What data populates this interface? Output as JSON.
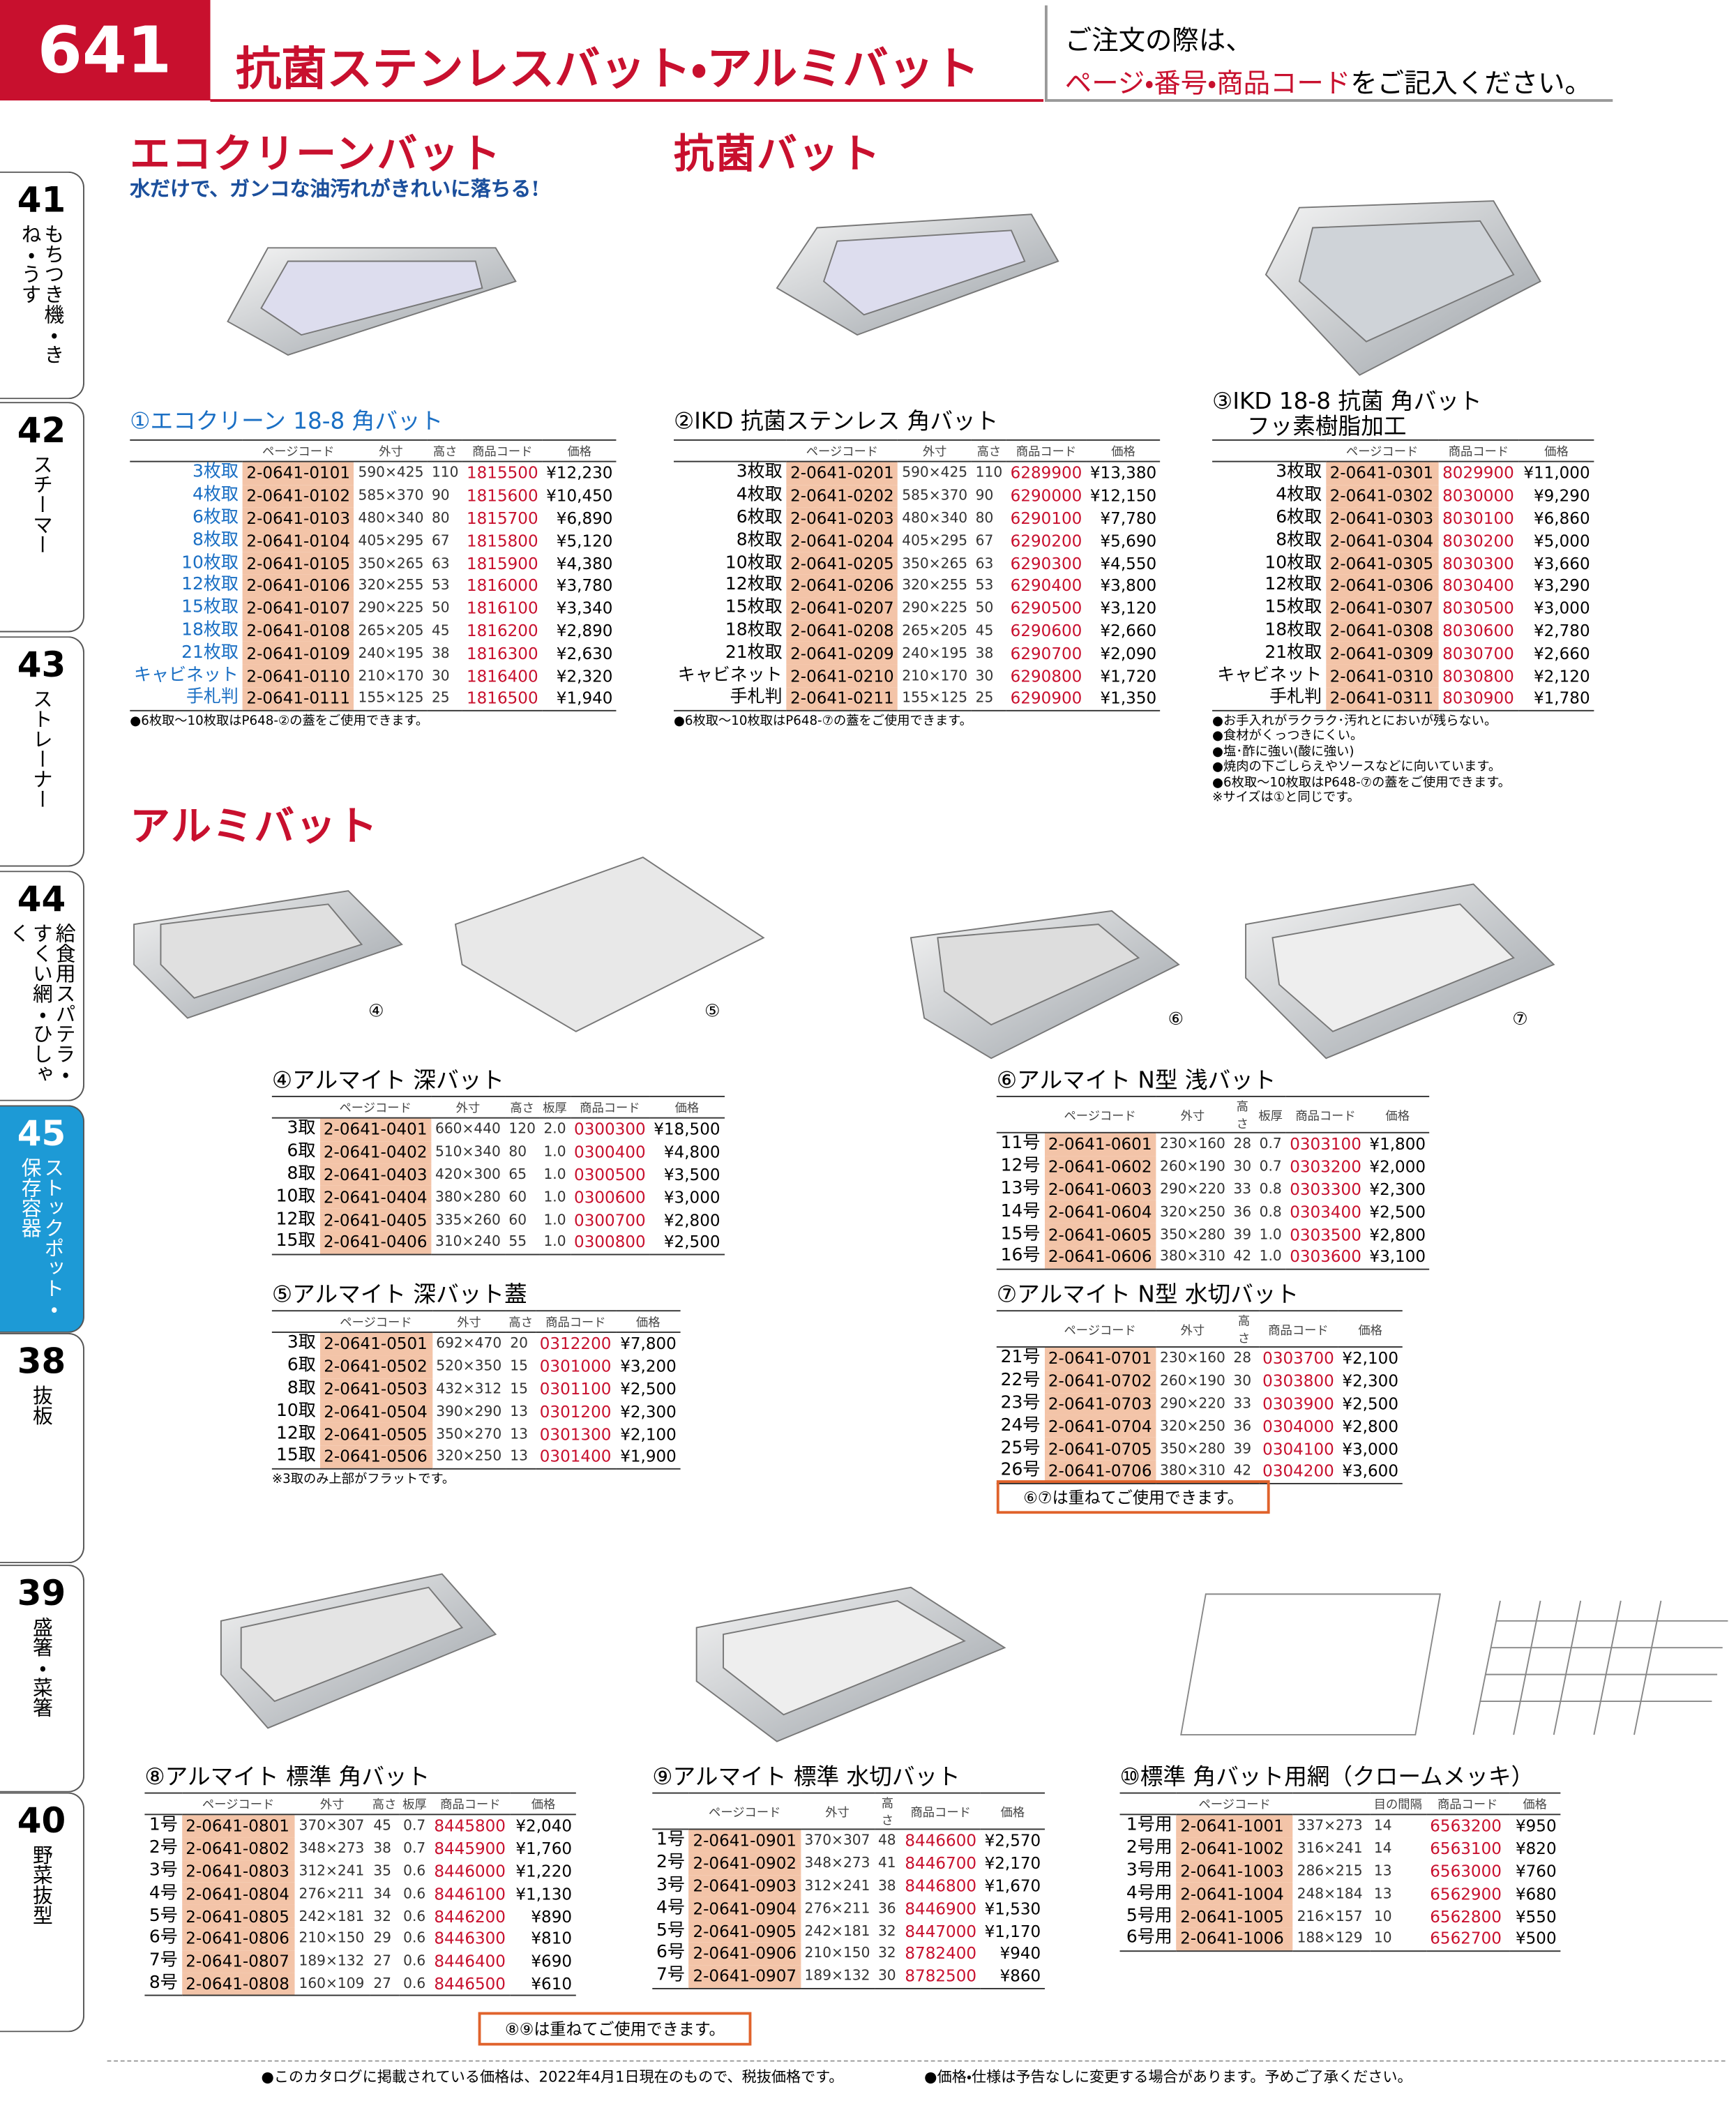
{
  "header": {
    "page": "641",
    "title": "抗菌ステンレスバット・アルミバット",
    "note_1": "ご注文の際は、",
    "note_red": "ページ・番号・商品コード",
    "note_2": "をご記入ください。"
  },
  "tabs": [
    {
      "num": "41",
      "label": "もちつき機・きね・うす"
    },
    {
      "num": "42",
      "label": "スチーマー"
    },
    {
      "num": "43",
      "label": "ストレーナー"
    },
    {
      "num": "44",
      "label": "給食用スパテラ・すくい網・ひしゃく"
    },
    {
      "num": "45",
      "label": "ストックポット・保存容器"
    },
    {
      "num": "38",
      "label": "抜板"
    },
    {
      "num": "39",
      "label": "盛箸・菜箸"
    },
    {
      "num": "40",
      "label": "野菜抜型"
    }
  ],
  "sections": {
    "eco": "エコクリーンバット",
    "eco_sub": "水だけで、ガンコな油汚れがきれいに落ちる!",
    "kokin": "抗菌バット",
    "alumi": "アルミバット"
  },
  "photo_labels": [
    "④",
    "⑤",
    "⑥",
    "⑦"
  ],
  "products": [
    {
      "title": "①エコクリーン 18-8 角バット",
      "columns": [
        "ページコード",
        "外寸",
        "高さ",
        "商品コード",
        "価格"
      ],
      "rows": [
        [
          "3枚取",
          "2-0641-0101",
          "590×425",
          "110",
          "1815500",
          "¥12,230"
        ],
        [
          "4枚取",
          "2-0641-0102",
          "585×370",
          "90",
          "1815600",
          "¥10,450"
        ],
        [
          "6枚取",
          "2-0641-0103",
          "480×340",
          "80",
          "1815700",
          "¥6,890"
        ],
        [
          "8枚取",
          "2-0641-0104",
          "405×295",
          "67",
          "1815800",
          "¥5,120"
        ],
        [
          "10枚取",
          "2-0641-0105",
          "350×265",
          "63",
          "1815900",
          "¥4,380"
        ],
        [
          "12枚取",
          "2-0641-0106",
          "320×255",
          "53",
          "1816000",
          "¥3,780"
        ],
        [
          "15枚取",
          "2-0641-0107",
          "290×225",
          "50",
          "1816100",
          "¥3,340"
        ],
        [
          "18枚取",
          "2-0641-0108",
          "265×205",
          "45",
          "1816200",
          "¥2,890"
        ],
        [
          "21枚取",
          "2-0641-0109",
          "240×195",
          "38",
          "1816300",
          "¥2,630"
        ],
        [
          "キャビネット",
          "2-0641-0110",
          "210×170",
          "30",
          "1816400",
          "¥2,320"
        ],
        [
          "手札判",
          "2-0641-0111",
          "155×125",
          "25",
          "1816500",
          "¥1,940"
        ]
      ],
      "notes": [
        "●6枚取～10枚取はP648-②の蓋をご使用できます。"
      ]
    },
    {
      "title": "②IKD 抗菌ステンレス 角バット",
      "columns": [
        "ページコード",
        "外寸",
        "高さ",
        "商品コード",
        "価格"
      ],
      "rows": [
        [
          "3枚取",
          "2-0641-0201",
          "590×425",
          "110",
          "6289900",
          "¥13,380"
        ],
        [
          "4枚取",
          "2-0641-0202",
          "585×370",
          "90",
          "6290000",
          "¥12,150"
        ],
        [
          "6枚取",
          "2-0641-0203",
          "480×340",
          "80",
          "6290100",
          "¥7,780"
        ],
        [
          "8枚取",
          "2-0641-0204",
          "405×295",
          "67",
          "6290200",
          "¥5,690"
        ],
        [
          "10枚取",
          "2-0641-0205",
          "350×265",
          "63",
          "6290300",
          "¥4,550"
        ],
        [
          "12枚取",
          "2-0641-0206",
          "320×255",
          "53",
          "6290400",
          "¥3,800"
        ],
        [
          "15枚取",
          "2-0641-0207",
          "290×225",
          "50",
          "6290500",
          "¥3,120"
        ],
        [
          "18枚取",
          "2-0641-0208",
          "265×205",
          "45",
          "6290600",
          "¥2,660"
        ],
        [
          "21枚取",
          "2-0641-0209",
          "240×195",
          "38",
          "6290700",
          "¥2,090"
        ],
        [
          "キャビネット",
          "2-0641-0210",
          "210×170",
          "30",
          "6290800",
          "¥1,720"
        ],
        [
          "手札判",
          "2-0641-0211",
          "155×125",
          "25",
          "6290900",
          "¥1,350"
        ]
      ],
      "notes": [
        "●6枚取～10枚取はP648-⑦の蓋をご使用できます。"
      ]
    },
    {
      "title": "③IKD 18-8 抗菌 角バット",
      "subtitle": "フッ素樹脂加工",
      "columns": [
        "ページコード",
        "商品コード",
        "価格"
      ],
      "rows": [
        [
          "3枚取",
          "2-0641-0301",
          "8029900",
          "¥11,000"
        ],
        [
          "4枚取",
          "2-0641-0302",
          "8030000",
          "¥9,290"
        ],
        [
          "6枚取",
          "2-0641-0303",
          "8030100",
          "¥6,860"
        ],
        [
          "8枚取",
          "2-0641-0304",
          "8030200",
          "¥5,000"
        ],
        [
          "10枚取",
          "2-0641-0305",
          "8030300",
          "¥3,660"
        ],
        [
          "12枚取",
          "2-0641-0306",
          "8030400",
          "¥3,290"
        ],
        [
          "15枚取",
          "2-0641-0307",
          "8030500",
          "¥3,000"
        ],
        [
          "18枚取",
          "2-0641-0308",
          "8030600",
          "¥2,780"
        ],
        [
          "21枚取",
          "2-0641-0309",
          "8030700",
          "¥2,660"
        ],
        [
          "キャビネット",
          "2-0641-0310",
          "8030800",
          "¥2,120"
        ],
        [
          "手札判",
          "2-0641-0311",
          "8030900",
          "¥1,780"
        ]
      ],
      "notes": [
        "●お手入れがラクラク･汚れとにおいが残らない。",
        "●食材がくっつきにくい。",
        "●塩･酢に強い(酸に強い)",
        "●焼肉の下ごしらえやソースなどに向いています。",
        "●6枚取～10枚取はP648-⑦の蓋をご使用できます。",
        "※サイズは①と同じです。"
      ]
    },
    {
      "title": "④アルマイト 深バット",
      "columns": [
        "ページコード",
        "外寸",
        "高さ",
        "板厚",
        "商品コード",
        "価格"
      ],
      "rows": [
        [
          "3取",
          "2-0641-0401",
          "660×440",
          "120",
          "2.0",
          "0300300",
          "¥18,500"
        ],
        [
          "6取",
          "2-0641-0402",
          "510×340",
          "80",
          "1.0",
          "0300400",
          "¥4,800"
        ],
        [
          "8取",
          "2-0641-0403",
          "420×300",
          "65",
          "1.0",
          "0300500",
          "¥3,500"
        ],
        [
          "10取",
          "2-0641-0404",
          "380×280",
          "60",
          "1.0",
          "0300600",
          "¥3,000"
        ],
        [
          "12取",
          "2-0641-0405",
          "335×260",
          "60",
          "1.0",
          "0300700",
          "¥2,800"
        ],
        [
          "15取",
          "2-0641-0406",
          "310×240",
          "55",
          "1.0",
          "0300800",
          "¥2,500"
        ]
      ]
    },
    {
      "title": "⑤アルマイト 深バット蓋",
      "columns": [
        "ページコード",
        "外寸",
        "高さ",
        "商品コード",
        "価格"
      ],
      "rows": [
        [
          "3取",
          "2-0641-0501",
          "692×470",
          "20",
          "0312200",
          "¥7,800"
        ],
        [
          "6取",
          "2-0641-0502",
          "520×350",
          "15",
          "0301000",
          "¥3,200"
        ],
        [
          "8取",
          "2-0641-0503",
          "432×312",
          "15",
          "0301100",
          "¥2,500"
        ],
        [
          "10取",
          "2-0641-0504",
          "390×290",
          "13",
          "0301200",
          "¥2,300"
        ],
        [
          "12取",
          "2-0641-0505",
          "350×270",
          "13",
          "0301300",
          "¥2,100"
        ],
        [
          "15取",
          "2-0641-0506",
          "320×250",
          "13",
          "0301400",
          "¥1,900"
        ]
      ],
      "notes": [
        "※3取のみ上部がフラットです。"
      ]
    },
    {
      "title": "⑥アルマイト N型 浅バット",
      "columns": [
        "ページコード",
        "外寸",
        "高さ",
        "板厚",
        "商品コード",
        "価格"
      ],
      "rows": [
        [
          "11号",
          "2-0641-0601",
          "230×160",
          "28",
          "0.7",
          "0303100",
          "¥1,800"
        ],
        [
          "12号",
          "2-0641-0602",
          "260×190",
          "30",
          "0.7",
          "0303200",
          "¥2,000"
        ],
        [
          "13号",
          "2-0641-0603",
          "290×220",
          "33",
          "0.8",
          "0303300",
          "¥2,300"
        ],
        [
          "14号",
          "2-0641-0604",
          "320×250",
          "36",
          "0.8",
          "0303400",
          "¥2,500"
        ],
        [
          "15号",
          "2-0641-0605",
          "350×280",
          "39",
          "1.0",
          "0303500",
          "¥2,800"
        ],
        [
          "16号",
          "2-0641-0606",
          "380×310",
          "42",
          "1.0",
          "0303600",
          "¥3,100"
        ]
      ]
    },
    {
      "title": "⑦アルマイト N型 水切バット",
      "columns": [
        "ページコード",
        "外寸",
        "高さ",
        "商品コード",
        "価格"
      ],
      "rows": [
        [
          "21号",
          "2-0641-0701",
          "230×160",
          "28",
          "0303700",
          "¥2,100"
        ],
        [
          "22号",
          "2-0641-0702",
          "260×190",
          "30",
          "0303800",
          "¥2,300"
        ],
        [
          "23号",
          "2-0641-0703",
          "290×220",
          "33",
          "0303900",
          "¥2,500"
        ],
        [
          "24号",
          "2-0641-0704",
          "320×250",
          "36",
          "0304000",
          "¥2,800"
        ],
        [
          "25号",
          "2-0641-0705",
          "350×280",
          "39",
          "0304100",
          "¥3,000"
        ],
        [
          "26号",
          "2-0641-0706",
          "380×310",
          "42",
          "0304200",
          "¥3,600"
        ]
      ],
      "boxnote": "⑥⑦は重ねてご使用できます。"
    },
    {
      "title": "⑧アルマイト 標準 角バット",
      "columns": [
        "ページコード",
        "外寸",
        "高さ",
        "板厚",
        "商品コード",
        "価格"
      ],
      "rows": [
        [
          "1号",
          "2-0641-0801",
          "370×307",
          "45",
          "0.7",
          "8445800",
          "¥2,040"
        ],
        [
          "2号",
          "2-0641-0802",
          "348×273",
          "38",
          "0.7",
          "8445900",
          "¥1,760"
        ],
        [
          "3号",
          "2-0641-0803",
          "312×241",
          "35",
          "0.6",
          "8446000",
          "¥1,220"
        ],
        [
          "4号",
          "2-0641-0804",
          "276×211",
          "34",
          "0.6",
          "8446100",
          "¥1,130"
        ],
        [
          "5号",
          "2-0641-0805",
          "242×181",
          "32",
          "0.6",
          "8446200",
          "¥890"
        ],
        [
          "6号",
          "2-0641-0806",
          "210×150",
          "29",
          "0.6",
          "8446300",
          "¥810"
        ],
        [
          "7号",
          "2-0641-0807",
          "189×132",
          "27",
          "0.6",
          "8446400",
          "¥690"
        ],
        [
          "8号",
          "2-0641-0808",
          "160×109",
          "27",
          "0.6",
          "8446500",
          "¥610"
        ]
      ],
      "boxnote": "⑧⑨は重ねてご使用できます。"
    },
    {
      "title": "⑨アルマイト 標準 水切バット",
      "columns": [
        "ページコード",
        "外寸",
        "高さ",
        "商品コード",
        "価格"
      ],
      "rows": [
        [
          "1号",
          "2-0641-0901",
          "370×307",
          "48",
          "8446600",
          "¥2,570"
        ],
        [
          "2号",
          "2-0641-0902",
          "348×273",
          "41",
          "8446700",
          "¥2,170"
        ],
        [
          "3号",
          "2-0641-0903",
          "312×241",
          "38",
          "8446800",
          "¥1,670"
        ],
        [
          "4号",
          "2-0641-0904",
          "276×211",
          "36",
          "8446900",
          "¥1,530"
        ],
        [
          "5号",
          "2-0641-0905",
          "242×181",
          "32",
          "8447000",
          "¥1,170"
        ],
        [
          "6号",
          "2-0641-0906",
          "210×150",
          "32",
          "8782400",
          "¥940"
        ],
        [
          "7号",
          "2-0641-0907",
          "189×132",
          "30",
          "8782500",
          "¥860"
        ]
      ]
    },
    {
      "title": "⑩標準 角バット用網（クロームメッキ）",
      "columns": [
        "ページコード",
        null,
        "目の間隔",
        "商品コード",
        "価格"
      ],
      "rows": [
        [
          "1号用",
          "2-0641-1001",
          "337×273",
          "14",
          "6563200",
          "¥950"
        ],
        [
          "2号用",
          "2-0641-1002",
          "316×241",
          "14",
          "6563100",
          "¥820"
        ],
        [
          "3号用",
          "2-0641-1003",
          "286×215",
          "13",
          "6563000",
          "¥760"
        ],
        [
          "4号用",
          "2-0641-1004",
          "248×184",
          "13",
          "6562900",
          "¥680"
        ],
        [
          "5号用",
          "2-0641-1005",
          "216×157",
          "10",
          "6562800",
          "¥550"
        ],
        [
          "6号用",
          "2-0641-1006",
          "188×129",
          "10",
          "6562700",
          "¥500"
        ]
      ]
    }
  ],
  "footer": [
    "●このカタログに掲載されている価格は、2022年4月1日現在のもので、税抜価格です。",
    "●価格・仕様は予告なしに変更する場合があります。予めご了承ください。"
  ]
}
